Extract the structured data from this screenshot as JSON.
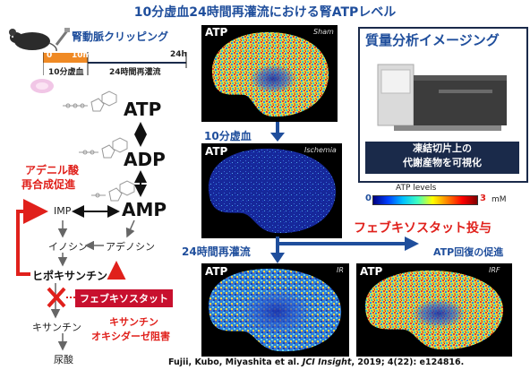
{
  "title": "10分虚血24時間再灌流における腎ATPレベル",
  "procedure": {
    "label": "腎動脈クリッピング",
    "timeline_ticks": [
      "0",
      "10m",
      "24h"
    ],
    "ischemia_label": "10分虚血",
    "reperfusion_label": "24時間再灌流"
  },
  "pathway": {
    "atp": "ATP",
    "adp": "ADP",
    "amp": "AMP",
    "imp": "IMP",
    "inosine": "イノシン",
    "adenosine": "アデノシン",
    "hypoxanthine": "ヒポキサンチン",
    "xanthine": "キサンチン",
    "uric_acid": "尿酸",
    "adenylate_resynthesis": [
      "アデニル酸",
      "再合成促進"
    ],
    "febuxostat_box": "フェブキソスタット",
    "xo_inhibition": [
      "キサンチン",
      "オキシダーゼ阻害"
    ]
  },
  "panels": {
    "sham": {
      "label": "ATP",
      "tag": "Sham"
    },
    "ischemia": {
      "label": "ATP",
      "tag": "Ischemia"
    },
    "ir": {
      "label": "ATP",
      "tag": "IR"
    },
    "irf": {
      "label": "ATP",
      "tag": "IRF"
    },
    "ischemia_caption": "10分虚血",
    "reperfusion_caption": "24時間再灌流"
  },
  "imaging": {
    "title": "質量分析イメージング",
    "caption": [
      "凍結切片上の",
      "代謝産物を可視化"
    ]
  },
  "legend": {
    "title": "ATP levels",
    "min": "0",
    "max": "3",
    "unit": "mM"
  },
  "febuxostat_admin": "フェブキソスタット投与",
  "atp_recovery": "ATP回復の促進",
  "citation": {
    "authors": "Fujii, Kubo, Miyashita et al. ",
    "journal": "JCI Insight",
    "rest": ", 2019; 4(22): e124816."
  },
  "colors": {
    "title_blue": "#1f4e9c",
    "accent_red": "#e0201b",
    "navy_box": "#1a2a4a",
    "timeline_orange": "#f08a24"
  },
  "icons": [
    "mouse-icon",
    "clamp-icon",
    "kidney-icon",
    "ms-instrument-icon"
  ]
}
